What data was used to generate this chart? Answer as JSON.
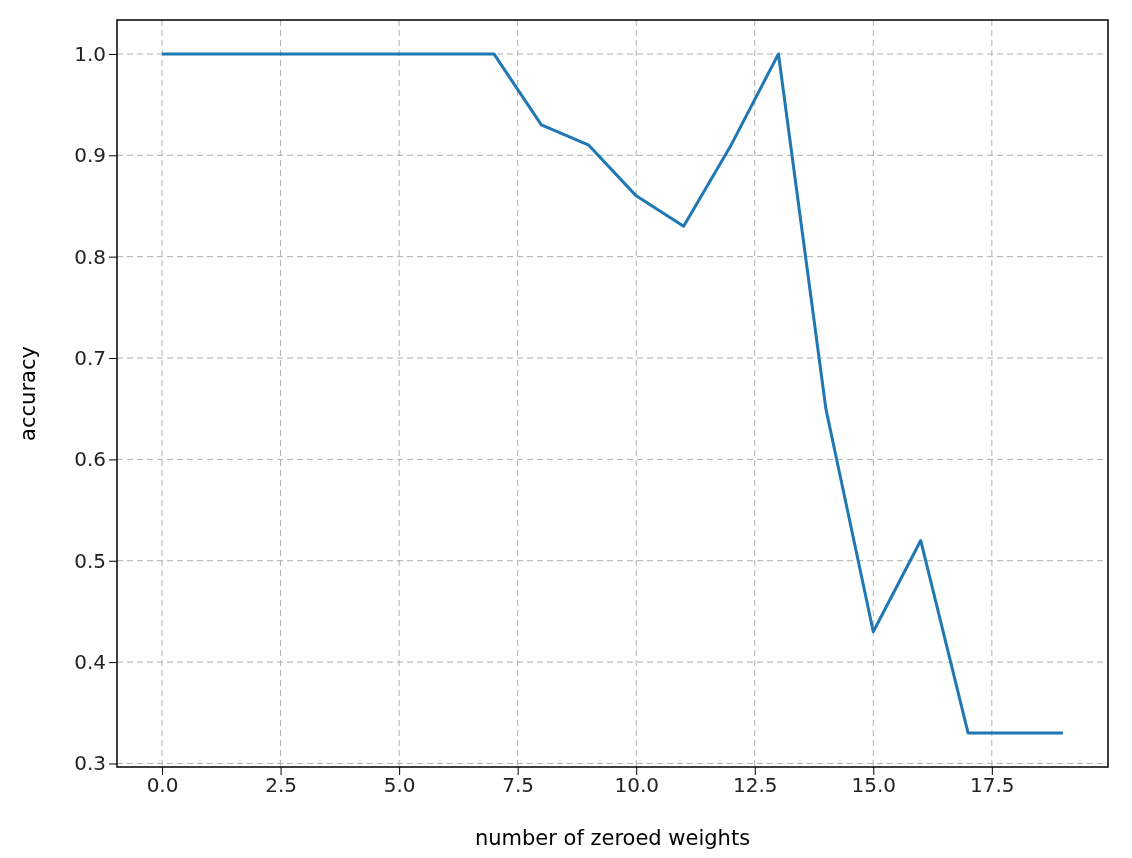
{
  "chart_data": {
    "type": "line",
    "xlabel": "number of zeroed weights",
    "ylabel": "accuracy",
    "x": [
      0,
      1,
      2,
      3,
      4,
      5,
      6,
      7,
      8,
      9,
      10,
      11,
      12,
      13,
      14,
      15,
      16,
      17,
      18,
      19
    ],
    "series": [
      {
        "color": "#1f77b4",
        "values": [
          1,
          1,
          1,
          1,
          1,
          1,
          1,
          1,
          0.93,
          0.91,
          0.86,
          0.83,
          0.91,
          1.0,
          0.65,
          0.43,
          0.52,
          0.33,
          0.33,
          0.33
        ]
      }
    ],
    "xlim": [
      -0.95,
      19.95
    ],
    "ylim": [
      0.2965,
      1.0335
    ],
    "xticks": [
      {
        "value": 0,
        "label": "0.0"
      },
      {
        "value": 2.5,
        "label": "2.5"
      },
      {
        "value": 5,
        "label": "5.0"
      },
      {
        "value": 7.5,
        "label": "7.5"
      },
      {
        "value": 10,
        "label": "10.0"
      },
      {
        "value": 12.5,
        "label": "12.5"
      },
      {
        "value": 15,
        "label": "15.0"
      },
      {
        "value": 17.5,
        "label": "17.5"
      }
    ],
    "yticks": [
      {
        "value": 0.3,
        "label": "0.3"
      },
      {
        "value": 0.4,
        "label": "0.4"
      },
      {
        "value": 0.5,
        "label": "0.5"
      },
      {
        "value": 0.6,
        "label": "0.6"
      },
      {
        "value": 0.7,
        "label": "0.7"
      },
      {
        "value": 0.8,
        "label": "0.8"
      },
      {
        "value": 0.9,
        "label": "0.9"
      },
      {
        "value": 1.0,
        "label": "1.0"
      }
    ],
    "grid": true,
    "line_style": "solid"
  }
}
